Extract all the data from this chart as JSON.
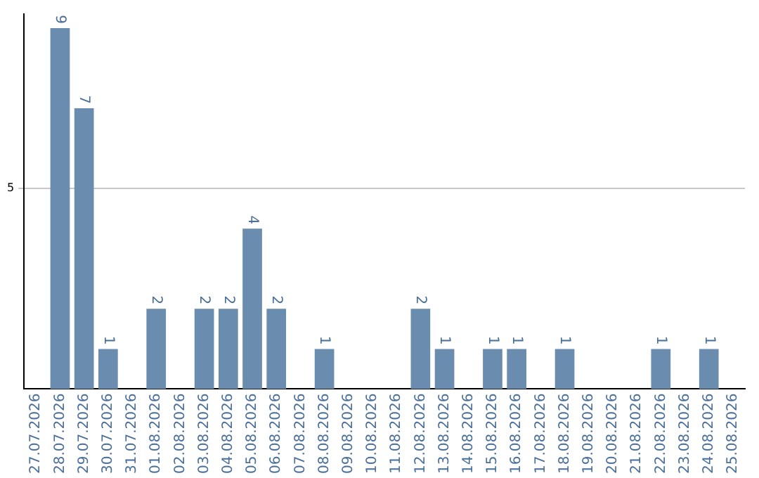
{
  "chart_data": {
    "type": "bar",
    "categories": [
      "27.07.2026",
      "28.07.2026",
      "29.07.2026",
      "30.07.2026",
      "31.07.2026",
      "01.08.2026",
      "02.08.2026",
      "03.08.2026",
      "04.08.2026",
      "05.08.2026",
      "06.08.2026",
      "07.08.2026",
      "08.08.2026",
      "09.08.2026",
      "10.08.2026",
      "11.08.2026",
      "12.08.2026",
      "13.08.2026",
      "14.08.2026",
      "15.08.2026",
      "16.08.2026",
      "17.08.2026",
      "18.08.2026",
      "19.08.2026",
      "20.08.2026",
      "21.08.2026",
      "22.08.2026",
      "23.08.2026",
      "24.08.2026",
      "25.08.2026"
    ],
    "values": [
      0,
      9,
      7,
      1,
      0,
      2,
      0,
      2,
      2,
      4,
      2,
      0,
      1,
      0,
      0,
      0,
      2,
      1,
      0,
      1,
      1,
      0,
      1,
      0,
      0,
      0,
      1,
      0,
      1,
      0
    ],
    "value_labels": [
      null,
      "9",
      "7",
      "1",
      null,
      "2",
      null,
      "2",
      "2",
      "4",
      "2",
      null,
      "1",
      null,
      null,
      null,
      "2",
      "1",
      null,
      "1",
      "1",
      null,
      "1",
      null,
      null,
      null,
      "1",
      null,
      "1",
      null
    ],
    "color": "#6a8caf",
    "ylim": [
      0,
      9.35
    ],
    "yticks": [
      5
    ],
    "grid": "y"
  }
}
